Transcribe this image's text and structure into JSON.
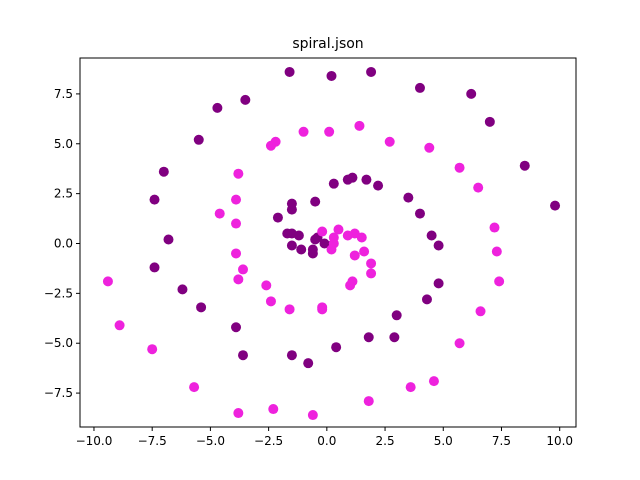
{
  "chart_data": {
    "type": "scatter",
    "title": "spiral.json",
    "xlabel": "",
    "ylabel": "",
    "xlim": [
      -10.6,
      10.7
    ],
    "ylim": [
      -9.2,
      9.3
    ],
    "xticks": [
      -10.0,
      -7.5,
      -5.0,
      -2.5,
      0.0,
      2.5,
      5.0,
      7.5,
      10.0
    ],
    "xtick_labels": [
      "−10.0",
      "−7.5",
      "−5.0",
      "−2.5",
      "0.0",
      "2.5",
      "5.0",
      "7.5",
      "10.0"
    ],
    "yticks": [
      -7.5,
      -5.0,
      -2.5,
      0.0,
      2.5,
      5.0,
      7.5
    ],
    "ytick_labels": [
      "−7.5",
      "−5.0",
      "−2.5",
      "0.0",
      "2.5",
      "5.0",
      "7.5"
    ],
    "grid": false,
    "series": [
      {
        "color": "#800080",
        "points": [
          [
            -1.6,
            8.6
          ],
          [
            0.2,
            8.4
          ],
          [
            1.9,
            8.6
          ],
          [
            4.0,
            7.8
          ],
          [
            6.2,
            7.5
          ],
          [
            7.0,
            6.1
          ],
          [
            8.5,
            3.9
          ],
          [
            9.8,
            1.9
          ],
          [
            -4.7,
            6.8
          ],
          [
            -3.5,
            7.2
          ],
          [
            -5.5,
            5.2
          ],
          [
            -7.0,
            3.6
          ],
          [
            -7.4,
            2.2
          ],
          [
            -6.8,
            0.2
          ],
          [
            -7.4,
            -1.2
          ],
          [
            -6.2,
            -2.3
          ],
          [
            -5.4,
            -3.2
          ],
          [
            -3.9,
            -4.2
          ],
          [
            -3.6,
            -5.6
          ],
          [
            -1.5,
            -5.6
          ],
          [
            -0.8,
            -6.0
          ],
          [
            0.4,
            -5.2
          ],
          [
            1.8,
            -4.7
          ],
          [
            2.9,
            -4.7
          ],
          [
            3.0,
            -3.6
          ],
          [
            4.3,
            -2.8
          ],
          [
            4.8,
            -2.0
          ],
          [
            4.8,
            -0.1
          ],
          [
            4.5,
            0.4
          ],
          [
            4.0,
            1.5
          ],
          [
            3.5,
            2.3
          ],
          [
            2.2,
            2.9
          ],
          [
            1.7,
            3.2
          ],
          [
            1.1,
            3.3
          ],
          [
            0.9,
            3.2
          ],
          [
            0.3,
            3.0
          ],
          [
            -0.5,
            2.1
          ],
          [
            -1.5,
            2.0
          ],
          [
            -1.5,
            1.7
          ],
          [
            -2.1,
            1.3
          ],
          [
            -1.7,
            0.5
          ],
          [
            -1.5,
            0.5
          ],
          [
            -1.2,
            0.4
          ],
          [
            -1.5,
            -0.1
          ],
          [
            -1.1,
            -0.3
          ],
          [
            -0.6,
            -0.3
          ],
          [
            -0.6,
            -0.5
          ],
          [
            -0.5,
            0.2
          ],
          [
            -0.4,
            0.3
          ],
          [
            -0.1,
            0.0
          ],
          [
            0.2,
            -0.1
          ]
        ]
      },
      {
        "color": "#ee22dd",
        "points": [
          [
            -9.4,
            -1.9
          ],
          [
            -8.9,
            -4.1
          ],
          [
            -7.5,
            -5.3
          ],
          [
            -5.7,
            -7.2
          ],
          [
            -3.8,
            -8.5
          ],
          [
            -2.3,
            -8.3
          ],
          [
            -0.6,
            -8.6
          ],
          [
            1.8,
            -7.9
          ],
          [
            3.6,
            -7.2
          ],
          [
            4.6,
            -6.9
          ],
          [
            5.7,
            -5.0
          ],
          [
            6.6,
            -3.4
          ],
          [
            7.4,
            -1.9
          ],
          [
            7.3,
            -0.4
          ],
          [
            7.2,
            0.8
          ],
          [
            6.5,
            2.8
          ],
          [
            5.7,
            3.8
          ],
          [
            4.4,
            4.8
          ],
          [
            2.7,
            5.1
          ],
          [
            1.4,
            5.9
          ],
          [
            0.1,
            5.6
          ],
          [
            -1.0,
            5.6
          ],
          [
            -2.4,
            4.9
          ],
          [
            -2.2,
            5.1
          ],
          [
            -3.8,
            3.5
          ],
          [
            -3.9,
            2.2
          ],
          [
            -4.6,
            1.5
          ],
          [
            -3.9,
            1.0
          ],
          [
            -3.9,
            -0.5
          ],
          [
            -3.6,
            -1.3
          ],
          [
            -3.8,
            -1.8
          ],
          [
            -2.6,
            -2.1
          ],
          [
            -2.4,
            -2.9
          ],
          [
            -1.6,
            -3.3
          ],
          [
            -0.2,
            -3.2
          ],
          [
            -0.2,
            -3.3
          ],
          [
            1.0,
            -2.1
          ],
          [
            1.1,
            -1.9
          ],
          [
            1.9,
            -1.5
          ],
          [
            1.9,
            -1.0
          ],
          [
            1.2,
            -0.6
          ],
          [
            1.6,
            -0.4
          ],
          [
            1.5,
            0.3
          ],
          [
            1.2,
            0.5
          ],
          [
            0.9,
            0.4
          ],
          [
            0.5,
            0.7
          ],
          [
            0.3,
            0.3
          ],
          [
            -0.2,
            0.6
          ],
          [
            0.2,
            -0.3
          ],
          [
            0.3,
            0.0
          ]
        ]
      }
    ]
  }
}
